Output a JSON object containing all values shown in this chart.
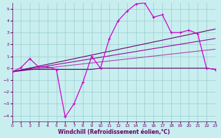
{
  "xlabel": "Windchill (Refroidissement éolien,°C)",
  "xlim": [
    0,
    23
  ],
  "ylim": [
    -4.5,
    5.5
  ],
  "xticks": [
    0,
    1,
    2,
    3,
    4,
    5,
    6,
    7,
    8,
    9,
    10,
    11,
    12,
    13,
    14,
    15,
    16,
    17,
    18,
    19,
    20,
    21,
    22,
    23
  ],
  "yticks": [
    -4,
    -3,
    -2,
    -1,
    0,
    1,
    2,
    3,
    4,
    5
  ],
  "bg_color": "#c8eef0",
  "grid_color": "#99cccc",
  "jagged": {
    "x": [
      0,
      1,
      2,
      3,
      4,
      5,
      6,
      7,
      8,
      9,
      10,
      11,
      12,
      13,
      14,
      15,
      16,
      17,
      18,
      19,
      20,
      21,
      22,
      23
    ],
    "y": [
      -0.3,
      0.05,
      0.8,
      0.1,
      0.1,
      -0.1,
      -4.1,
      -3.0,
      -1.2,
      1.0,
      0.0,
      2.5,
      4.0,
      4.8,
      5.4,
      5.5,
      4.3,
      4.5,
      3.0,
      3.0,
      3.2,
      2.9,
      0.0,
      -0.1
    ],
    "color": "#cc00cc",
    "lw": 0.9
  },
  "flat": {
    "x": [
      0,
      1,
      2,
      3,
      4,
      5,
      6,
      7,
      8,
      9,
      10,
      11,
      12,
      13,
      14,
      15,
      16,
      17,
      18,
      19,
      20,
      21,
      22,
      23
    ],
    "y": [
      -0.3,
      -0.2,
      -0.1,
      -0.1,
      -0.1,
      -0.1,
      -0.1,
      -0.1,
      -0.1,
      -0.1,
      0.0,
      0.0,
      0.0,
      0.0,
      0.0,
      0.0,
      0.0,
      0.0,
      0.0,
      0.0,
      0.0,
      0.0,
      0.0,
      -0.1
    ],
    "color": "#660066",
    "lw": 0.8
  },
  "trends": [
    {
      "x": [
        0,
        23
      ],
      "y": [
        -0.3,
        3.3
      ],
      "color": "#660066",
      "lw": 0.8
    },
    {
      "x": [
        0,
        23
      ],
      "y": [
        -0.3,
        2.5
      ],
      "color": "#990099",
      "lw": 0.8
    },
    {
      "x": [
        0,
        23
      ],
      "y": [
        -0.3,
        1.6
      ],
      "color": "#aa44aa",
      "lw": 0.8
    }
  ],
  "xlabel_color": "#660066",
  "xlabel_fontsize": 5.5,
  "tick_color": "#660066",
  "tick_labelsize": 4.5
}
